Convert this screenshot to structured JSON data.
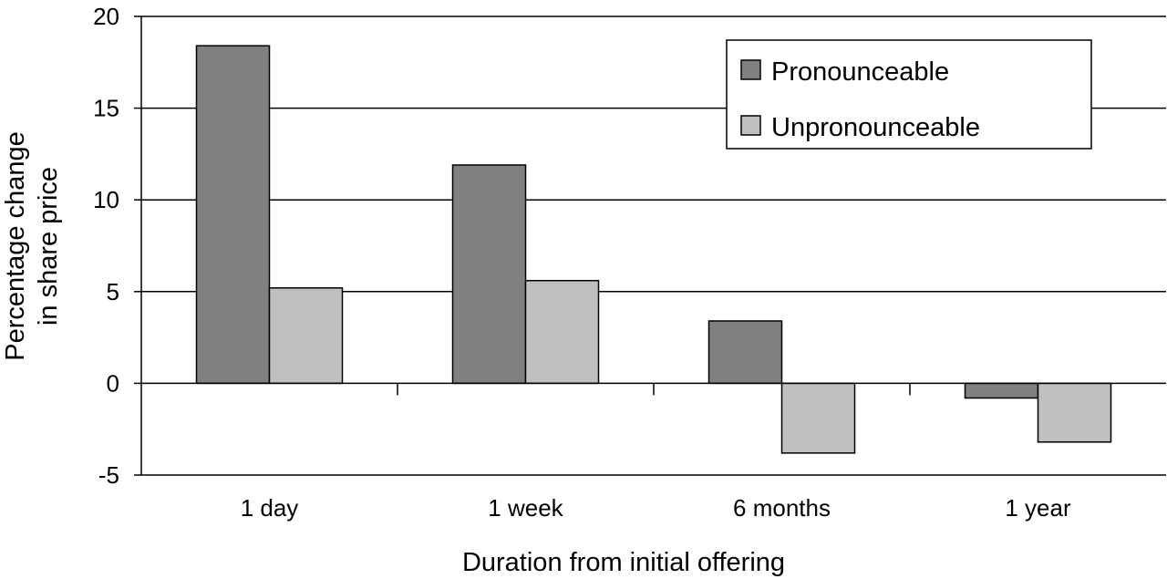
{
  "chart_data": {
    "type": "bar",
    "categories": [
      "1 day",
      "1 week",
      "6 months",
      "1 year"
    ],
    "series": [
      {
        "name": "Pronounceable",
        "values": [
          18.4,
          11.9,
          3.4,
          -0.8
        ],
        "color": "#808080"
      },
      {
        "name": "Unpronounceable",
        "values": [
          5.2,
          5.6,
          -3.8,
          -3.2
        ],
        "color": "#c0c0c0"
      }
    ],
    "xlabel": "Duration from initial offering",
    "ylabel_lines": [
      "Percentage change",
      "in share price"
    ],
    "ylim": [
      -5,
      20
    ],
    "yticks": [
      20,
      15,
      10,
      5,
      0,
      -5
    ],
    "grid": true,
    "legend": "top-right"
  }
}
